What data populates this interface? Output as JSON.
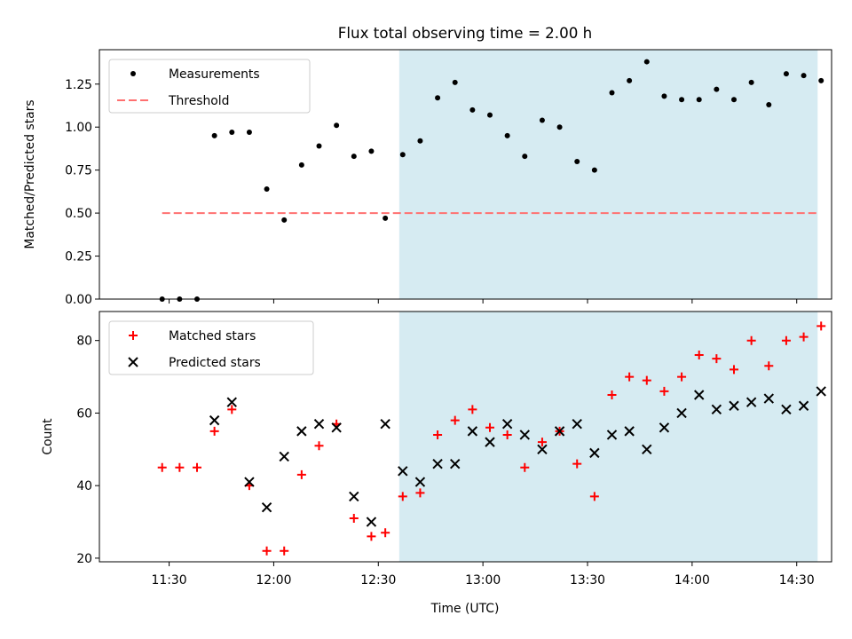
{
  "chart_data": {
    "title": "Flux total observing time = 2.00 h",
    "xlabel": "Time (UTC)",
    "x_ticks": [
      "11:30",
      "12:00",
      "12:30",
      "13:00",
      "13:30",
      "14:00",
      "14:30"
    ],
    "x_tick_minutes": [
      690,
      720,
      750,
      780,
      810,
      840,
      870
    ],
    "xlim_minutes": [
      670,
      880
    ],
    "shaded_region": {
      "start": "12:36",
      "end": "14:36",
      "color": "#add8e6"
    },
    "panels": [
      {
        "type": "scatter",
        "ylabel": "Matched/Predicted stars",
        "ylim": [
          0,
          1.45
        ],
        "y_ticks": [
          "0.00",
          "0.25",
          "0.50",
          "0.75",
          "1.00",
          "1.25"
        ],
        "y_tick_values": [
          0,
          0.25,
          0.5,
          0.75,
          1.0,
          1.25
        ],
        "threshold": {
          "name": "Threshold",
          "value": 0.5,
          "color": "#ff7070",
          "x_range": [
            "11:28",
            "14:36"
          ]
        },
        "legend": [
          "Measurements",
          "Threshold"
        ],
        "series": [
          {
            "name": "Measurements",
            "color": "#000000",
            "marker": "dot",
            "x": [
              "11:28",
              "11:33",
              "11:38",
              "11:43",
              "11:48",
              "11:53",
              "11:58",
              "12:03",
              "12:08",
              "12:13",
              "12:18",
              "12:23",
              "12:28",
              "12:32",
              "12:37",
              "12:42",
              "12:47",
              "12:52",
              "12:57",
              "13:02",
              "13:07",
              "13:12",
              "13:17",
              "13:22",
              "13:27",
              "13:32",
              "13:37",
              "13:42",
              "13:47",
              "13:52",
              "13:57",
              "14:02",
              "14:07",
              "14:12",
              "14:17",
              "14:22",
              "14:27",
              "14:32",
              "14:37"
            ],
            "values": [
              0.0,
              0.0,
              0.0,
              0.95,
              0.97,
              0.97,
              0.64,
              0.46,
              0.78,
              0.89,
              1.01,
              0.83,
              0.86,
              0.47,
              0.84,
              0.92,
              1.17,
              1.26,
              1.1,
              1.07,
              0.95,
              0.83,
              1.04,
              1.0,
              0.8,
              0.75,
              1.2,
              1.27,
              1.38,
              1.18,
              1.16,
              1.16,
              1.22,
              1.16,
              1.26,
              1.13,
              1.31,
              1.3,
              1.27
            ]
          }
        ]
      },
      {
        "type": "scatter",
        "ylabel": "Count",
        "ylim": [
          19,
          88
        ],
        "y_ticks": [
          "20",
          "40",
          "60",
          "80"
        ],
        "y_tick_values": [
          20,
          40,
          60,
          80
        ],
        "legend": [
          "Matched stars",
          "Predicted stars"
        ],
        "series": [
          {
            "name": "Matched stars",
            "color": "#ff0000",
            "marker": "plus",
            "x": [
              "11:28",
              "11:33",
              "11:38",
              "11:43",
              "11:48",
              "11:53",
              "11:58",
              "12:03",
              "12:08",
              "12:13",
              "12:18",
              "12:23",
              "12:28",
              "12:32",
              "12:37",
              "12:42",
              "12:47",
              "12:52",
              "12:57",
              "13:02",
              "13:07",
              "13:12",
              "13:17",
              "13:22",
              "13:27",
              "13:32",
              "13:37",
              "13:42",
              "13:47",
              "13:52",
              "13:57",
              "14:02",
              "14:07",
              "14:12",
              "14:17",
              "14:22",
              "14:27",
              "14:32",
              "14:37"
            ],
            "values": [
              45,
              45,
              45,
              55,
              61,
              40,
              22,
              22,
              43,
              51,
              57,
              31,
              26,
              27,
              37,
              38,
              54,
              58,
              61,
              56,
              54,
              45,
              52,
              55,
              46,
              37,
              65,
              70,
              69,
              66,
              70,
              76,
              75,
              72,
              80,
              73,
              80,
              81,
              84
            ]
          },
          {
            "name": "Predicted stars",
            "color": "#000000",
            "marker": "x",
            "x": [
              "11:43",
              "11:48",
              "11:53",
              "11:58",
              "12:03",
              "12:08",
              "12:13",
              "12:18",
              "12:23",
              "12:28",
              "12:32",
              "12:37",
              "12:42",
              "12:47",
              "12:52",
              "12:57",
              "13:02",
              "13:07",
              "13:12",
              "13:17",
              "13:22",
              "13:27",
              "13:32",
              "13:37",
              "13:42",
              "13:47",
              "13:52",
              "13:57",
              "14:02",
              "14:07",
              "14:12",
              "14:17",
              "14:22",
              "14:27",
              "14:32",
              "14:37"
            ],
            "values": [
              58,
              63,
              41,
              34,
              48,
              55,
              57,
              56,
              37,
              30,
              57,
              44,
              41,
              46,
              46,
              55,
              52,
              57,
              54,
              50,
              55,
              57,
              49,
              54,
              55,
              50,
              56,
              60,
              65,
              61,
              62,
              63,
              64,
              61,
              62,
              66
            ]
          }
        ]
      }
    ]
  }
}
